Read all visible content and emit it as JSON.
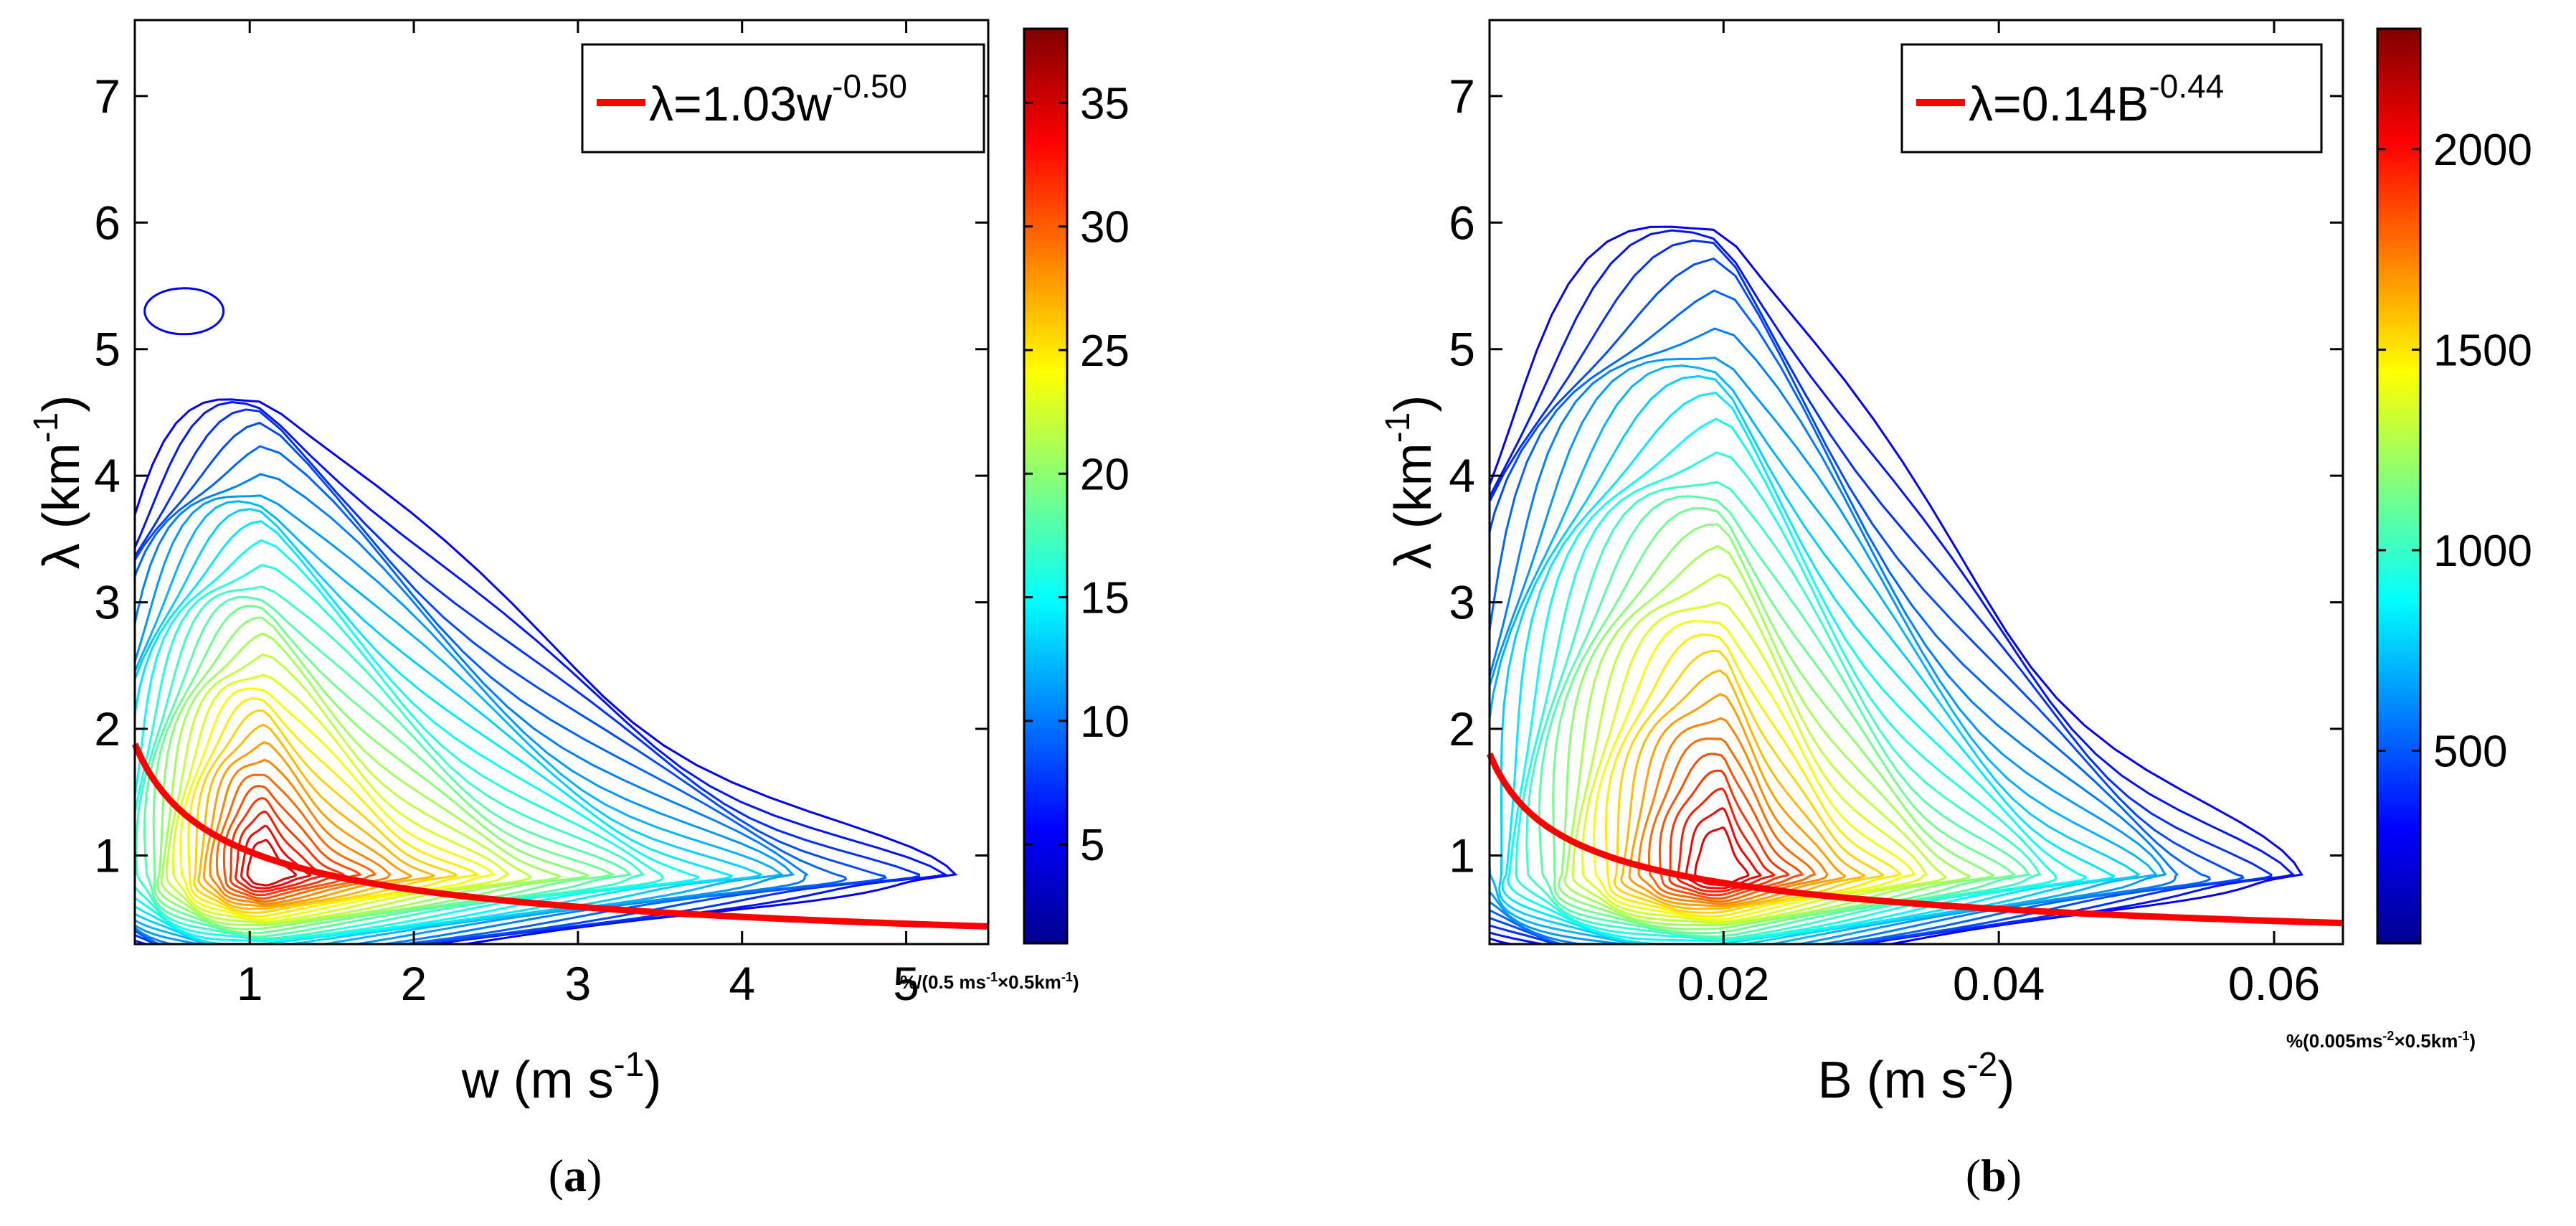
{
  "chart_data": [
    {
      "id": "a",
      "type": "contour",
      "panel_label": "a",
      "xlabel": "w (m s",
      "xlabel_sup": "-1",
      "xlabel_close": ")",
      "ylabel": "λ (km",
      "ylabel_sup": "-1",
      "ylabel_close": ")",
      "xlim": [
        0.3,
        5.5
      ],
      "ylim": [
        0.3,
        7.6
      ],
      "xticks": [
        1,
        2,
        3,
        4,
        5
      ],
      "xtick_labels": [
        "1",
        "2",
        "3",
        "4",
        "5"
      ],
      "yticks": [
        1,
        2,
        3,
        4,
        5,
        6,
        7
      ],
      "ytick_labels": [
        "1",
        "2",
        "3",
        "4",
        "5",
        "6",
        "7"
      ],
      "colorbar": {
        "range": [
          1,
          38
        ],
        "ticks": [
          5,
          10,
          15,
          20,
          25,
          30,
          35
        ],
        "tick_labels": [
          "5",
          "10",
          "15",
          "20",
          "25",
          "30",
          "35"
        ],
        "units_text": "%/(0.5 ms",
        "units_sup": "-1",
        "units_tail": "×0.5km",
        "units_sup2": "-1",
        "units_close": ")"
      },
      "fit": {
        "coefficient": 1.03,
        "exponent": -0.5,
        "x_range": [
          0.3,
          5.5
        ]
      },
      "legend": {
        "prefix": "λ=1.03w",
        "sup": "-0.50",
        "location": "top-right"
      },
      "density": {
        "peak_x": 1.1,
        "peak_y": 0.85,
        "peak_value": 37,
        "max_w": 5.3,
        "max_lambda": 4.7,
        "outlier_island": {
          "x": 0.6,
          "y": 5.3
        }
      }
    },
    {
      "id": "b",
      "type": "contour",
      "panel_label": "b",
      "xlabel": "B (m s",
      "xlabel_sup": "-2",
      "xlabel_close": ")",
      "ylabel": "λ (km",
      "ylabel_sup": "-1",
      "ylabel_close": ")",
      "xlim": [
        0.003,
        0.065
      ],
      "ylim": [
        0.3,
        7.6
      ],
      "xticks": [
        0.02,
        0.04,
        0.06
      ],
      "xtick_labels": [
        "0.02",
        "0.04",
        "0.06"
      ],
      "yticks": [
        1,
        2,
        3,
        4,
        5,
        6,
        7
      ],
      "ytick_labels": [
        "1",
        "2",
        "3",
        "4",
        "5",
        "6",
        "7"
      ],
      "colorbar": {
        "range": [
          20,
          2300
        ],
        "ticks": [
          500,
          1000,
          1500,
          2000
        ],
        "tick_labels": [
          "500",
          "1000",
          "1500",
          "2000"
        ],
        "units_text": "%(0.005ms",
        "units_sup": "-2",
        "units_tail": "×0.5km",
        "units_sup2": "-1",
        "units_close": ")"
      },
      "fit": {
        "coefficient": 0.14,
        "exponent": -0.44,
        "x_range": [
          0.003,
          0.065
        ]
      },
      "legend": {
        "prefix": "λ=0.14B",
        "sup": "-0.44",
        "location": "top-right"
      },
      "density": {
        "peak_x": 0.02,
        "peak_y": 0.85,
        "peak_value": 2300,
        "max_B": 0.062,
        "max_lambda": 6.1
      }
    }
  ]
}
